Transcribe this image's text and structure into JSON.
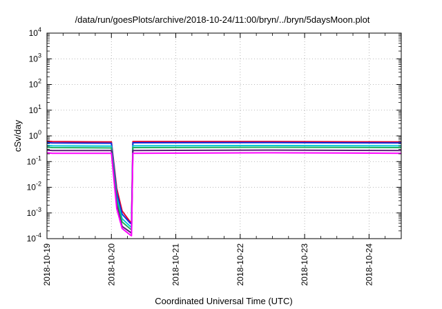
{
  "chart_data": {
    "type": "line",
    "title": "/data/run/goesPlots/archive/2018-10-24/11:00/bryn/../bryn/5daysMoon.plot",
    "xlabel": "Coordinated Universal Time (UTC)",
    "ylabel": "cSv/day",
    "yscale": "log",
    "ylim": [
      0.0001,
      10000
    ],
    "ytick_labels": [
      {
        "base": "10",
        "exp": "-4",
        "value": 0.0001
      },
      {
        "base": "10",
        "exp": "-3",
        "value": 0.001
      },
      {
        "base": "10",
        "exp": "-2",
        "value": 0.01
      },
      {
        "base": "10",
        "exp": "-1",
        "value": 0.1
      },
      {
        "base": "10",
        "exp": "0",
        "value": 1
      },
      {
        "base": "10",
        "exp": "1",
        "value": 10
      },
      {
        "base": "10",
        "exp": "2",
        "value": 100
      },
      {
        "base": "10",
        "exp": "3",
        "value": 1000
      },
      {
        "base": "10",
        "exp": "4",
        "value": 10000
      }
    ],
    "xlim": [
      "2018-10-19",
      "2018-10-24T12:00"
    ],
    "xtick_labels": [
      "2018-10-19",
      "2018-10-20",
      "2018-10-21",
      "2018-10-22",
      "2018-10-23",
      "2018-10-24"
    ],
    "grid": true,
    "legend": "none",
    "series": [
      {
        "color": "#e4002b",
        "x": [
          "2018-10-19T00:00",
          "2018-10-19T02:00",
          "2018-10-20T00:00",
          "2018-10-20T02:00",
          "2018-10-20T04:00",
          "2018-10-20T07:00",
          "2018-10-20T07:30",
          "2018-10-20T08:00",
          "2018-10-22T12:00",
          "2018-10-24T12:00"
        ],
        "y": [
          0.62,
          0.6,
          0.58,
          0.009,
          0.0012,
          0.00045,
          0.00042,
          0.6,
          0.6,
          0.58
        ]
      },
      {
        "color": "#1030e0",
        "x": [
          "2018-10-19T00:00",
          "2018-10-19T02:00",
          "2018-10-20T00:00",
          "2018-10-20T02:00",
          "2018-10-20T04:00",
          "2018-10-20T07:00",
          "2018-10-20T07:30",
          "2018-10-20T08:00",
          "2018-10-22T12:00",
          "2018-10-24T12:00"
        ],
        "y": [
          0.55,
          0.53,
          0.52,
          0.006,
          0.0009,
          0.0004,
          0.00038,
          0.54,
          0.55,
          0.53
        ]
      },
      {
        "color": "#00c8d8",
        "x": [
          "2018-10-19T00:00",
          "2018-10-19T02:00",
          "2018-10-20T00:00",
          "2018-10-20T02:00",
          "2018-10-20T04:00",
          "2018-10-20T07:00",
          "2018-10-20T07:30",
          "2018-10-20T08:00",
          "2018-10-22T12:00",
          "2018-10-24T12:00"
        ],
        "y": [
          0.42,
          0.41,
          0.4,
          0.004,
          0.0006,
          0.0003,
          0.00028,
          0.41,
          0.42,
          0.41
        ]
      },
      {
        "color": "#20b060",
        "x": [
          "2018-10-19T00:00",
          "2018-10-19T02:00",
          "2018-10-20T00:00",
          "2018-10-20T02:00",
          "2018-10-20T04:00",
          "2018-10-20T07:00",
          "2018-10-20T07:30",
          "2018-10-20T08:00",
          "2018-10-22T12:00",
          "2018-10-24T12:00"
        ],
        "y": [
          0.36,
          0.35,
          0.34,
          0.003,
          0.00045,
          0.00024,
          0.00022,
          0.35,
          0.36,
          0.35
        ]
      },
      {
        "color": "#5a1a78",
        "x": [
          "2018-10-19T00:00",
          "2018-10-19T02:00",
          "2018-10-20T00:00",
          "2018-10-20T02:00",
          "2018-10-20T04:00",
          "2018-10-20T07:00",
          "2018-10-20T07:30",
          "2018-10-20T08:00",
          "2018-10-22T12:00",
          "2018-10-24T12:00"
        ],
        "y": [
          0.28,
          0.27,
          0.27,
          0.002,
          0.0003,
          0.00018,
          0.00016,
          0.27,
          0.28,
          0.27
        ]
      },
      {
        "color": "#ff00ff",
        "x": [
          "2018-10-19T00:00",
          "2018-10-19T02:00",
          "2018-10-20T00:00",
          "2018-10-20T02:00",
          "2018-10-20T04:00",
          "2018-10-20T07:00",
          "2018-10-20T07:30",
          "2018-10-20T08:00",
          "2018-10-22T12:00",
          "2018-10-24T12:00"
        ],
        "y": [
          0.22,
          0.21,
          0.21,
          0.0015,
          0.00025,
          0.00014,
          0.00013,
          0.21,
          0.22,
          0.21
        ]
      }
    ]
  }
}
